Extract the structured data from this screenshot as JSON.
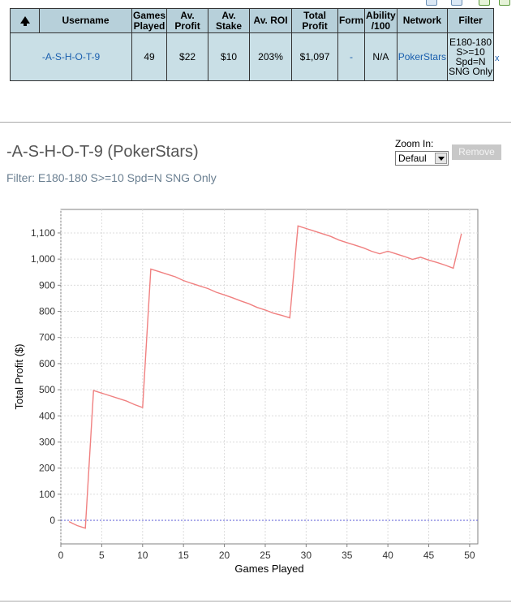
{
  "table": {
    "headers": [
      "",
      "Username",
      "Games\nPlayed",
      "Av.\nProfit",
      "Av.\nStake",
      "Av. ROI",
      "Total\nProfit",
      "Form",
      "Ability\n/100",
      "Network",
      "Filter"
    ],
    "row": {
      "username": "-A-S-H-O-T-9",
      "games_played": "49",
      "av_profit": "$22",
      "av_stake": "$10",
      "av_roi": "203%",
      "total_profit": "$1,097",
      "form": "-",
      "ability": "N/A",
      "network": "PokerStars",
      "filter": "E180-180\nS>=10\nSpd=N\nSNG Only"
    },
    "close": "x"
  },
  "player": {
    "title": "-A-S-H-O-T-9 (PokerStars)",
    "filter": "Filter: E180-180 S>=10 Spd=N SNG Only"
  },
  "zoom": {
    "label": "Zoom In:",
    "selected": "Defaul"
  },
  "remove_label": "Remove",
  "chart_data": {
    "type": "line",
    "title": "",
    "xlabel": "Games Played",
    "ylabel": "Total Profit ($)",
    "xlim": [
      0,
      51
    ],
    "ylim": [
      -90,
      1190
    ],
    "xticks": [
      0,
      5,
      10,
      15,
      20,
      25,
      30,
      35,
      40,
      45,
      50
    ],
    "yticks": [
      0,
      100,
      200,
      300,
      400,
      500,
      600,
      700,
      800,
      900,
      1000,
      1100
    ],
    "ytick_labels": [
      "0",
      "100",
      "200",
      "300",
      "400",
      "500",
      "600",
      "700",
      "800",
      "900",
      "1,000",
      "1,100"
    ],
    "grid": true,
    "baseline": 0,
    "series": [
      {
        "name": "Total Profit",
        "color": "#f08080",
        "x": [
          1,
          2,
          3,
          4,
          5,
          6,
          7,
          8,
          9,
          10,
          11,
          12,
          13,
          14,
          15,
          16,
          17,
          18,
          19,
          20,
          21,
          22,
          23,
          24,
          25,
          26,
          27,
          28,
          29,
          30,
          31,
          32,
          33,
          34,
          35,
          36,
          37,
          38,
          39,
          40,
          41,
          42,
          43,
          44,
          45,
          46,
          47,
          48,
          49
        ],
        "values": [
          -5,
          -20,
          -30,
          497,
          487,
          477,
          467,
          457,
          443,
          432,
          962,
          952,
          942,
          932,
          918,
          907,
          897,
          887,
          873,
          863,
          852,
          840,
          829,
          815,
          805,
          793,
          785,
          775,
          1127,
          1117,
          1107,
          1097,
          1087,
          1073,
          1063,
          1053,
          1043,
          1030,
          1020,
          1030,
          1020,
          1010,
          999,
          1007,
          996,
          987,
          977,
          965,
          1097
        ]
      }
    ]
  }
}
